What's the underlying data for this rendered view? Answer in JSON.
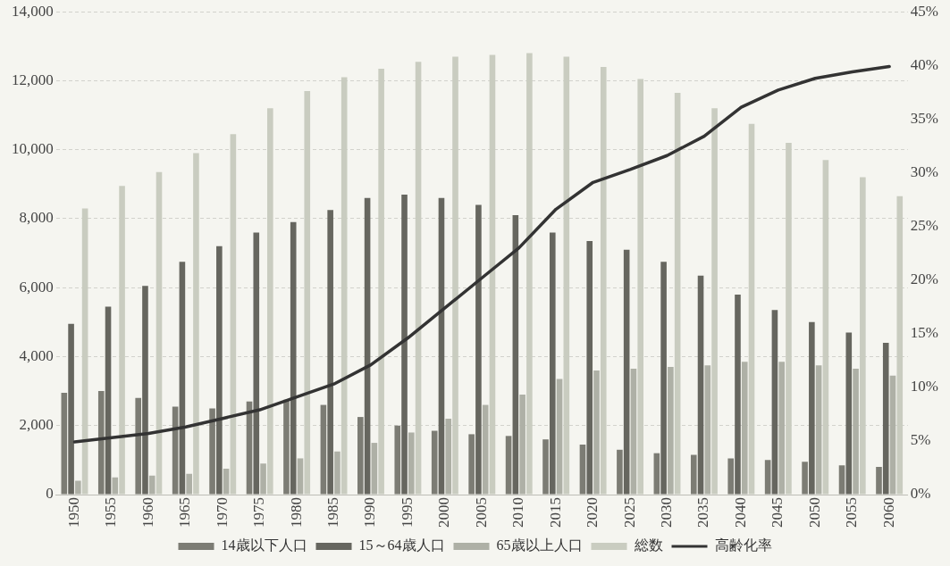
{
  "chart_data": {
    "type": "bar",
    "categories": [
      "1950",
      "1955",
      "1960",
      "1965",
      "1970",
      "1975",
      "1980",
      "1985",
      "1990",
      "1995",
      "2000",
      "2005",
      "2010",
      "2015",
      "2020",
      "2025",
      "2030",
      "2035",
      "2040",
      "2045",
      "2050",
      "2055",
      "2060"
    ],
    "series": [
      {
        "name": "14歳以下人口",
        "color": "#7c7c74",
        "values": [
          2950,
          3000,
          2800,
          2550,
          2500,
          2700,
          2750,
          2600,
          2250,
          2000,
          1850,
          1750,
          1700,
          1600,
          1450,
          1300,
          1200,
          1150,
          1050,
          1000,
          950,
          850,
          800
        ]
      },
      {
        "name": "15～64歳人口",
        "color": "#66665f",
        "values": [
          4950,
          5450,
          6050,
          6750,
          7200,
          7600,
          7900,
          8250,
          8600,
          8700,
          8600,
          8400,
          8100,
          7600,
          7350,
          7100,
          6750,
          6350,
          5800,
          5350,
          5000,
          4700,
          4400
        ]
      },
      {
        "name": "65歳以上人口",
        "color": "#aeb0a6",
        "values": [
          400,
          500,
          550,
          600,
          750,
          900,
          1050,
          1250,
          1500,
          1800,
          2200,
          2600,
          2900,
          3350,
          3600,
          3650,
          3700,
          3750,
          3850,
          3850,
          3750,
          3650,
          3450
        ]
      },
      {
        "name": "総数",
        "color": "#c9ccc0",
        "values": [
          8300,
          8950,
          9350,
          9900,
          10450,
          11200,
          11700,
          12100,
          12350,
          12550,
          12700,
          12750,
          12800,
          12700,
          12400,
          12050,
          11650,
          11200,
          10750,
          10200,
          9700,
          9200,
          8650
        ]
      },
      {
        "name": "高齢化率",
        "type": "line",
        "axis": "y2",
        "color": "#333333",
        "values": [
          4.9,
          5.3,
          5.7,
          6.3,
          7.1,
          7.9,
          9.1,
          10.3,
          12.1,
          14.6,
          17.4,
          20.2,
          23.0,
          26.6,
          29.1,
          30.3,
          31.6,
          33.4,
          36.1,
          37.7,
          38.8,
          39.4,
          39.9
        ]
      }
    ],
    "ylim": [
      0,
      14000
    ],
    "yticks": [
      {
        "value": 0,
        "label": "0"
      },
      {
        "value": 2000,
        "label": "2,000"
      },
      {
        "value": 4000,
        "label": "4,000"
      },
      {
        "value": 6000,
        "label": "6,000"
      },
      {
        "value": 8000,
        "label": "8,000"
      },
      {
        "value": 10000,
        "label": "10,000"
      },
      {
        "value": 12000,
        "label": "12,000"
      },
      {
        "value": 14000,
        "label": "14,000"
      }
    ],
    "y2lim": [
      0,
      45
    ],
    "y2ticks": [
      {
        "value": 0,
        "label": "0%"
      },
      {
        "value": 5,
        "label": "5%"
      },
      {
        "value": 10,
        "label": "10%"
      },
      {
        "value": 15,
        "label": "15%"
      },
      {
        "value": 20,
        "label": "20%"
      },
      {
        "value": 25,
        "label": "25%"
      },
      {
        "value": 30,
        "label": "30%"
      },
      {
        "value": 35,
        "label": "35%"
      },
      {
        "value": 40,
        "label": "40%"
      },
      {
        "value": 45,
        "label": "45%"
      }
    ],
    "grid": "y",
    "legend": "bottom",
    "marker": "none",
    "line_style": "solid"
  }
}
